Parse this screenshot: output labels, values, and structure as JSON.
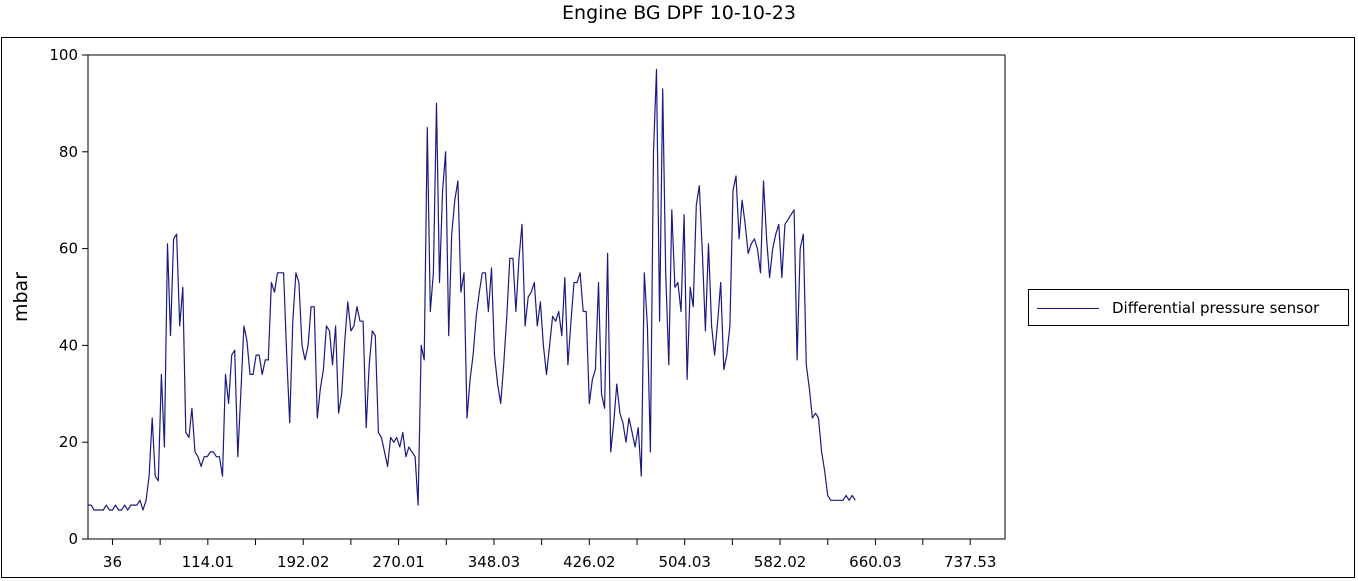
{
  "chart_data": {
    "type": "line",
    "title": "Engine BG DPF 10-10-23",
    "xlabel": "",
    "ylabel": "mbar",
    "xlim": [
      16,
      766
    ],
    "ylim": [
      0,
      100
    ],
    "yticks": [
      0,
      20,
      40,
      60,
      80,
      100
    ],
    "xticks": [
      "36",
      "114.01",
      "192.02",
      "270.01",
      "348.03",
      "426.02",
      "504.03",
      "582.02",
      "660.03",
      "737.53"
    ],
    "xtick_values": [
      36,
      114.01,
      192.02,
      270.01,
      348.03,
      426.02,
      504.03,
      582.02,
      660.03,
      737.53
    ],
    "legend": {
      "position": "right"
    },
    "series": [
      {
        "name": "Differential pressure sensor",
        "color": "#1a1a80",
        "x_start": 16,
        "x_step": 2.5,
        "values": [
          7,
          7,
          6,
          6,
          6,
          6,
          7,
          6,
          6,
          7,
          6,
          6,
          7,
          6,
          7,
          7,
          7,
          8,
          6,
          8,
          13,
          25,
          13,
          12,
          34,
          19,
          61,
          42,
          62,
          63,
          44,
          52,
          22,
          21,
          27,
          18,
          17,
          15,
          17,
          17,
          18,
          18,
          17,
          17,
          13,
          34,
          28,
          38,
          39,
          17,
          30,
          44,
          41,
          34,
          34,
          38,
          38,
          34,
          37,
          37,
          53,
          51,
          55,
          55,
          55,
          38,
          24,
          45,
          55,
          53,
          40,
          37,
          40,
          48,
          48,
          25,
          31,
          35,
          44,
          43,
          36,
          44,
          26,
          30,
          41,
          49,
          43,
          44,
          48,
          45,
          45,
          23,
          36,
          43,
          42,
          22,
          21,
          18,
          15,
          21,
          20,
          21,
          19,
          22,
          17,
          19,
          18,
          17,
          7,
          40,
          37,
          85,
          47,
          55,
          90,
          53,
          72,
          80,
          42,
          63,
          70,
          74,
          51,
          55,
          25,
          33,
          38,
          46,
          51,
          55,
          55,
          47,
          56,
          38,
          32,
          28,
          36,
          46,
          58,
          58,
          47,
          58,
          65,
          44,
          50,
          51,
          53,
          44,
          49,
          40,
          34,
          40,
          46,
          45,
          47,
          42,
          54,
          36,
          45,
          53,
          53,
          55,
          47,
          47,
          28,
          33,
          35,
          53,
          30,
          27,
          59,
          18,
          24,
          32,
          26,
          24,
          20,
          25,
          22,
          19,
          23,
          13,
          55,
          44,
          18,
          80,
          97,
          45,
          93,
          55,
          36,
          68,
          52,
          53,
          47,
          67,
          33,
          52,
          48,
          69,
          73,
          59,
          43,
          61,
          44,
          38,
          45,
          53,
          35,
          38,
          44,
          72,
          75,
          62,
          70,
          65,
          59,
          61,
          62,
          60,
          55,
          74,
          62,
          54,
          60,
          63,
          65,
          54,
          65,
          66,
          67,
          68,
          37,
          60,
          63,
          36,
          31,
          25,
          26,
          25,
          18,
          14,
          9,
          8,
          8,
          8,
          8,
          8,
          9,
          8,
          9,
          8
        ]
      }
    ]
  }
}
